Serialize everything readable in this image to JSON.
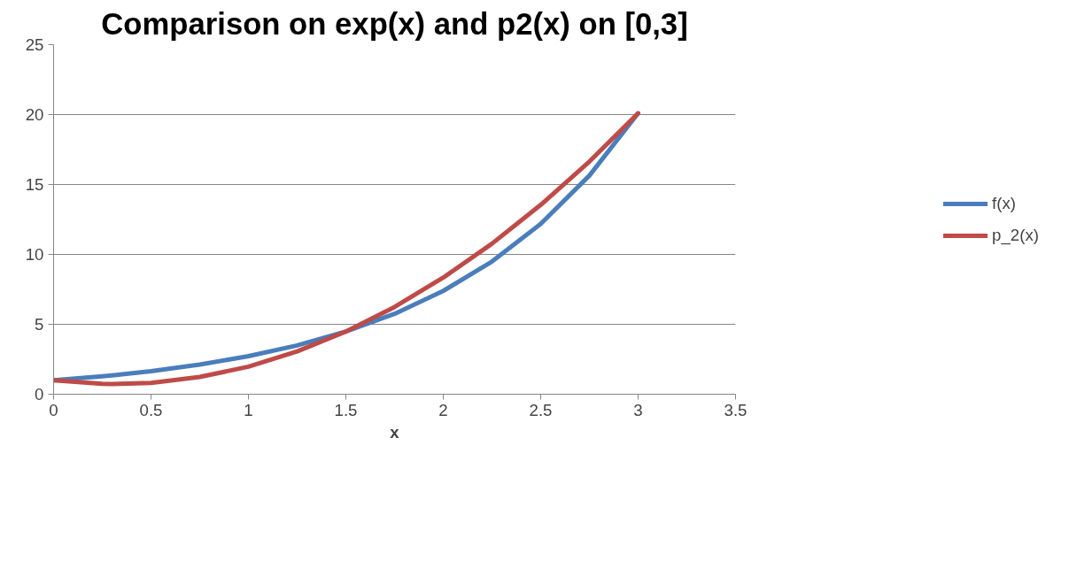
{
  "chart_data": {
    "type": "line",
    "title": "Comparison on exp(x) and p2(x) on [0,3]",
    "xlabel": "x",
    "x": [
      0,
      0.25,
      0.3,
      0.5,
      0.75,
      1,
      1.25,
      1.5,
      1.75,
      2,
      2.25,
      2.5,
      2.75,
      3
    ],
    "series": [
      {
        "name": "f(x)",
        "color": "#4a7ebb",
        "values": [
          1,
          1.28,
          1.35,
          1.65,
          2.12,
          2.72,
          3.49,
          4.48,
          5.75,
          7.39,
          9.49,
          12.18,
          15.64,
          20.09
        ]
      },
      {
        "name": "p_2(x)",
        "color": "#be4b48",
        "values": [
          1,
          0.74,
          0.73,
          0.81,
          1.23,
          1.97,
          3.06,
          4.48,
          6.24,
          8.34,
          10.77,
          13.54,
          16.64,
          20.09
        ]
      }
    ],
    "xlim": [
      0,
      3.5
    ],
    "xticks": [
      0,
      0.5,
      1,
      1.5,
      2,
      2.5,
      3,
      3.5
    ],
    "ylim": [
      0,
      25
    ],
    "yticks": [
      0,
      5,
      10,
      15,
      20,
      25
    ],
    "grid": "y",
    "legend": "right",
    "marker": "none",
    "line_style": "solid"
  }
}
